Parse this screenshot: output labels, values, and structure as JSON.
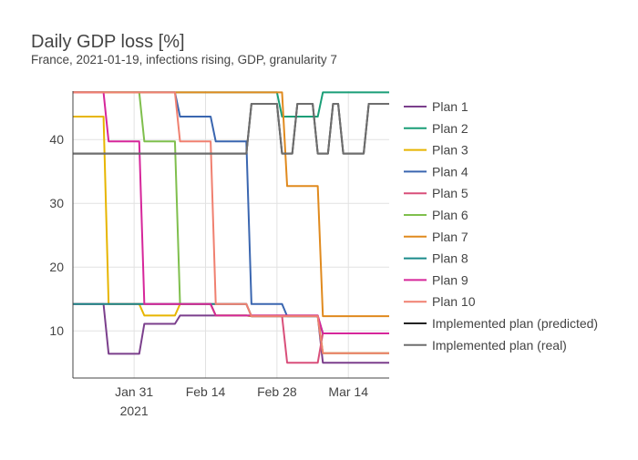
{
  "chart_data": {
    "type": "line",
    "title": "Daily GDP loss [%]",
    "subtitle": "France, 2021-01-19, infections rising, GDP, granularity 7",
    "xlabel": "",
    "ylabel": "",
    "x_range": [
      "2021-01-19",
      "2021-03-22"
    ],
    "y_range": [
      2.6,
      47.6
    ],
    "x_ticks": [
      {
        "date": "2021-01-31",
        "label": "Jan 31",
        "sublabel": "2021"
      },
      {
        "date": "2021-02-14",
        "label": "Feb 14",
        "sublabel": ""
      },
      {
        "date": "2021-02-28",
        "label": "Feb 28",
        "sublabel": ""
      },
      {
        "date": "2021-03-14",
        "label": "Mar 14",
        "sublabel": ""
      }
    ],
    "y_ticks": [
      10,
      20,
      30,
      40
    ],
    "grid": true,
    "legend_position": "right",
    "series": [
      {
        "name": "Plan 1",
        "color": "#7b3f8c",
        "x": [
          "2021-01-19",
          "2021-01-25",
          "2021-01-26",
          "2021-02-01",
          "2021-02-02",
          "2021-02-08",
          "2021-02-09",
          "2021-02-15",
          "2021-02-16",
          "2021-02-22",
          "2021-02-23",
          "2021-03-01",
          "2021-03-02",
          "2021-03-08",
          "2021-03-09",
          "2021-03-15",
          "2021-03-16",
          "2021-03-22"
        ],
        "y": [
          14.2,
          14.2,
          6.4,
          6.4,
          11.1,
          11.1,
          12.4,
          12.4,
          12.4,
          12.4,
          12.3,
          12.3,
          12.3,
          12.3,
          5.0,
          5.0,
          5.0,
          5.0
        ]
      },
      {
        "name": "Plan 2",
        "color": "#1a9e77",
        "x": [
          "2021-01-19",
          "2021-02-28",
          "2021-03-01",
          "2021-03-08",
          "2021-03-09",
          "2021-03-22"
        ],
        "y": [
          47.4,
          47.4,
          43.6,
          43.6,
          47.4,
          47.4
        ]
      },
      {
        "name": "Plan 3",
        "color": "#e7b500",
        "x": [
          "2021-01-19",
          "2021-01-25",
          "2021-01-26",
          "2021-02-01",
          "2021-02-02",
          "2021-02-08",
          "2021-02-09",
          "2021-02-15",
          "2021-02-16",
          "2021-02-22",
          "2021-02-23",
          "2021-03-08",
          "2021-03-09",
          "2021-03-22"
        ],
        "y": [
          43.6,
          43.6,
          14.2,
          14.2,
          12.4,
          12.4,
          14.2,
          14.2,
          12.4,
          12.4,
          12.3,
          12.3,
          6.5,
          6.5
        ]
      },
      {
        "name": "Plan 4",
        "color": "#3a66b0",
        "x": [
          "2021-01-19",
          "2021-02-08",
          "2021-02-09",
          "2021-02-15",
          "2021-02-16",
          "2021-02-22",
          "2021-02-23",
          "2021-03-01",
          "2021-03-02",
          "2021-03-08",
          "2021-03-09",
          "2021-03-22"
        ],
        "y": [
          47.4,
          47.4,
          43.6,
          43.6,
          39.7,
          39.7,
          14.2,
          14.2,
          12.3,
          12.3,
          9.6,
          9.6
        ]
      },
      {
        "name": "Plan 5",
        "color": "#d94f7a",
        "x": [
          "2021-01-19",
          "2021-02-22",
          "2021-02-23",
          "2021-03-01",
          "2021-03-02",
          "2021-03-08",
          "2021-03-09",
          "2021-03-22"
        ],
        "y": [
          14.2,
          14.2,
          12.3,
          12.3,
          5.0,
          5.0,
          9.6,
          9.6
        ]
      },
      {
        "name": "Plan 6",
        "color": "#7fbf4d",
        "x": [
          "2021-01-19",
          "2021-02-01",
          "2021-02-02",
          "2021-02-08",
          "2021-02-09",
          "2021-02-15",
          "2021-02-16",
          "2021-03-08",
          "2021-03-09",
          "2021-03-22"
        ],
        "y": [
          47.4,
          47.4,
          39.7,
          39.7,
          14.2,
          14.2,
          12.4,
          12.4,
          6.5,
          6.5
        ]
      },
      {
        "name": "Plan 7",
        "color": "#e08a1e",
        "x": [
          "2021-01-19",
          "2021-03-01",
          "2021-03-02",
          "2021-03-08",
          "2021-03-09",
          "2021-03-22"
        ],
        "y": [
          47.4,
          47.4,
          32.7,
          32.7,
          12.3,
          12.3
        ]
      },
      {
        "name": "Plan 8",
        "color": "#1a8a8a",
        "x": [
          "2021-01-19",
          "2021-02-22",
          "2021-02-23",
          "2021-03-08",
          "2021-03-09",
          "2021-03-22"
        ],
        "y": [
          14.2,
          14.2,
          12.3,
          12.3,
          9.6,
          9.6
        ]
      },
      {
        "name": "Plan 9",
        "color": "#d6269a",
        "x": [
          "2021-01-19",
          "2021-01-25",
          "2021-01-26",
          "2021-02-01",
          "2021-02-02",
          "2021-02-08",
          "2021-02-09",
          "2021-02-15",
          "2021-02-16",
          "2021-03-08",
          "2021-03-09",
          "2021-03-22"
        ],
        "y": [
          47.4,
          47.4,
          39.7,
          39.7,
          14.2,
          14.2,
          14.2,
          14.2,
          12.4,
          12.4,
          9.6,
          9.6
        ]
      },
      {
        "name": "Plan 10",
        "color": "#f08070",
        "x": [
          "2021-01-19",
          "2021-02-08",
          "2021-02-09",
          "2021-02-15",
          "2021-02-16",
          "2021-02-22",
          "2021-02-23",
          "2021-03-08",
          "2021-03-09",
          "2021-03-22"
        ],
        "y": [
          47.4,
          47.4,
          39.7,
          39.7,
          14.2,
          14.2,
          12.3,
          12.3,
          6.5,
          6.5
        ]
      },
      {
        "name": "Implemented plan (predicted)",
        "color": "#222222",
        "x": [
          "2021-01-19",
          "2021-02-22",
          "2021-02-23",
          "2021-02-28",
          "2021-03-01",
          "2021-03-02",
          "2021-03-03",
          "2021-03-04",
          "2021-03-07",
          "2021-03-08",
          "2021-03-09",
          "2021-03-10",
          "2021-03-11",
          "2021-03-12",
          "2021-03-13",
          "2021-03-14",
          "2021-03-17",
          "2021-03-18",
          "2021-03-19",
          "2021-03-22"
        ],
        "y": [
          37.8,
          37.8,
          45.6,
          45.6,
          37.8,
          37.8,
          37.8,
          45.6,
          45.6,
          37.8,
          37.8,
          37.8,
          45.6,
          45.6,
          37.8,
          37.8,
          37.8,
          45.6,
          45.6,
          45.6
        ]
      },
      {
        "name": "Implemented plan (real)",
        "color": "#6e6e6e",
        "x": [
          "2021-01-19",
          "2021-02-22",
          "2021-02-23",
          "2021-02-28",
          "2021-03-01",
          "2021-03-02",
          "2021-03-03",
          "2021-03-04",
          "2021-03-07",
          "2021-03-08",
          "2021-03-09",
          "2021-03-10",
          "2021-03-11",
          "2021-03-12",
          "2021-03-13",
          "2021-03-14",
          "2021-03-17",
          "2021-03-18",
          "2021-03-19",
          "2021-03-22"
        ],
        "y": [
          37.8,
          37.8,
          45.6,
          45.6,
          37.8,
          37.8,
          37.8,
          45.6,
          45.6,
          37.8,
          37.8,
          37.8,
          45.6,
          45.6,
          37.8,
          37.8,
          37.8,
          45.6,
          45.6,
          45.6
        ]
      }
    ]
  }
}
